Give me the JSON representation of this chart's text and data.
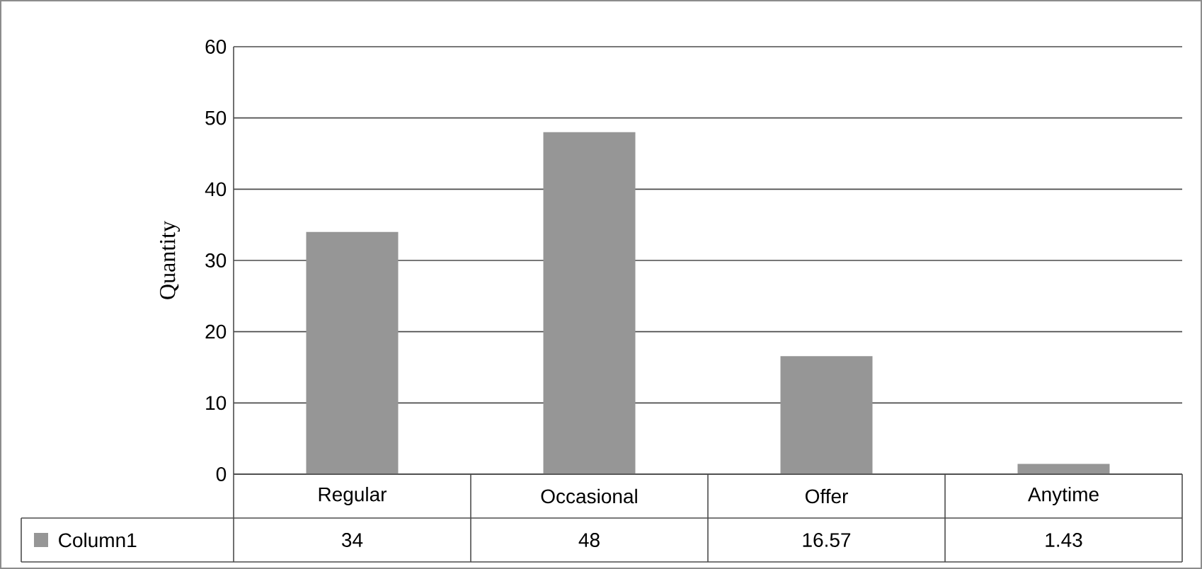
{
  "chart_data": {
    "type": "bar",
    "ylabel": "Quantity",
    "categories": [
      "Regular",
      "Occasional",
      "Offer",
      "Anytime"
    ],
    "series": [
      {
        "name": "Column1",
        "color": "#969696",
        "values": [
          34,
          48,
          16.57,
          1.43
        ]
      }
    ],
    "ylim": [
      0,
      60
    ],
    "yticks": [
      0,
      10,
      20,
      30,
      40,
      50,
      60
    ],
    "grid": "y",
    "legend": "bottom",
    "data_labels": true
  }
}
